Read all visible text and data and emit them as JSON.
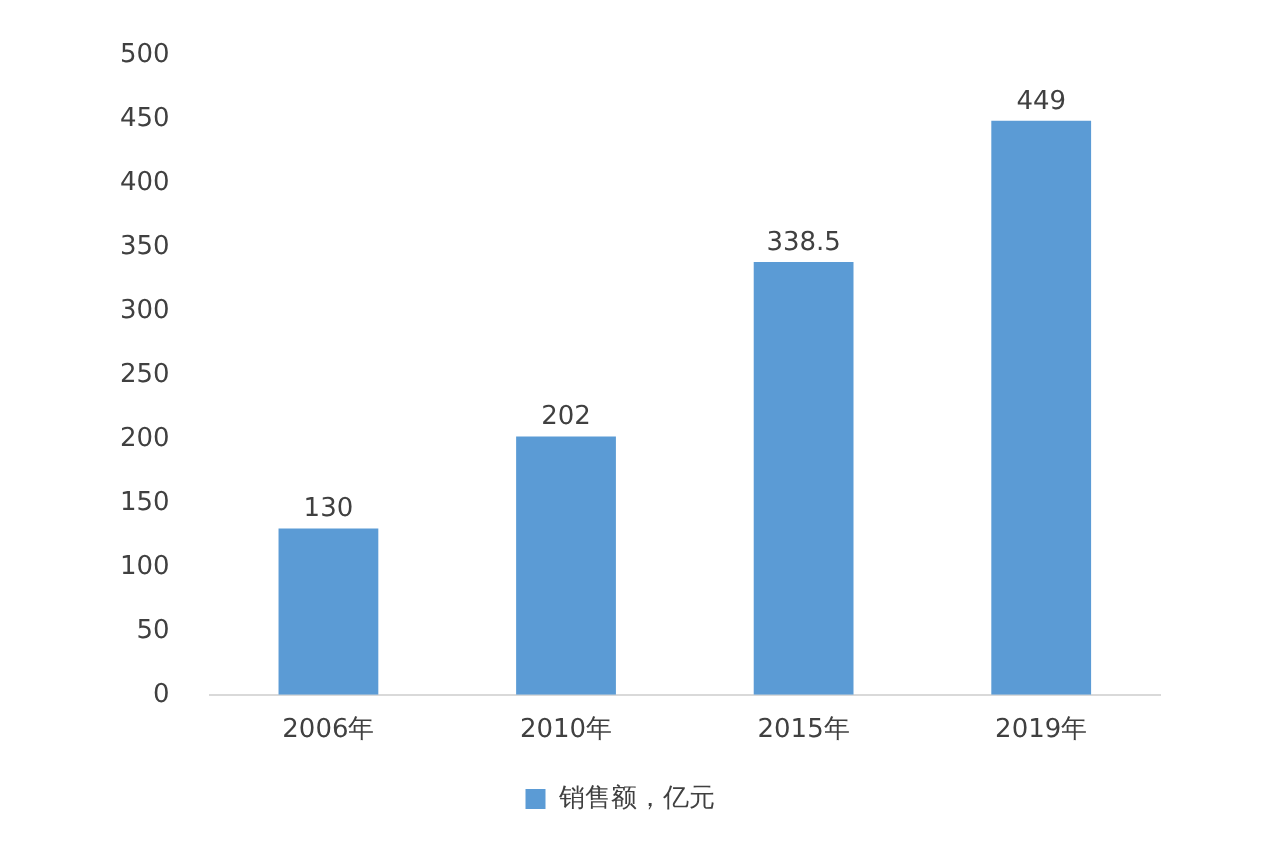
{
  "chart_data": {
    "type": "bar",
    "categories": [
      "2006年",
      "2010年",
      "2015年",
      "2019年"
    ],
    "series": [
      {
        "name": "销售额，亿元",
        "color": "#5b9bd5",
        "values": [
          130,
          202,
          338.5,
          449
        ]
      }
    ],
    "ylim": [
      0,
      500
    ],
    "yticks": [
      0,
      50,
      100,
      150,
      200,
      250,
      300,
      350,
      400,
      450,
      500
    ],
    "grid": false,
    "legend": "bottom",
    "data_labels": true
  }
}
